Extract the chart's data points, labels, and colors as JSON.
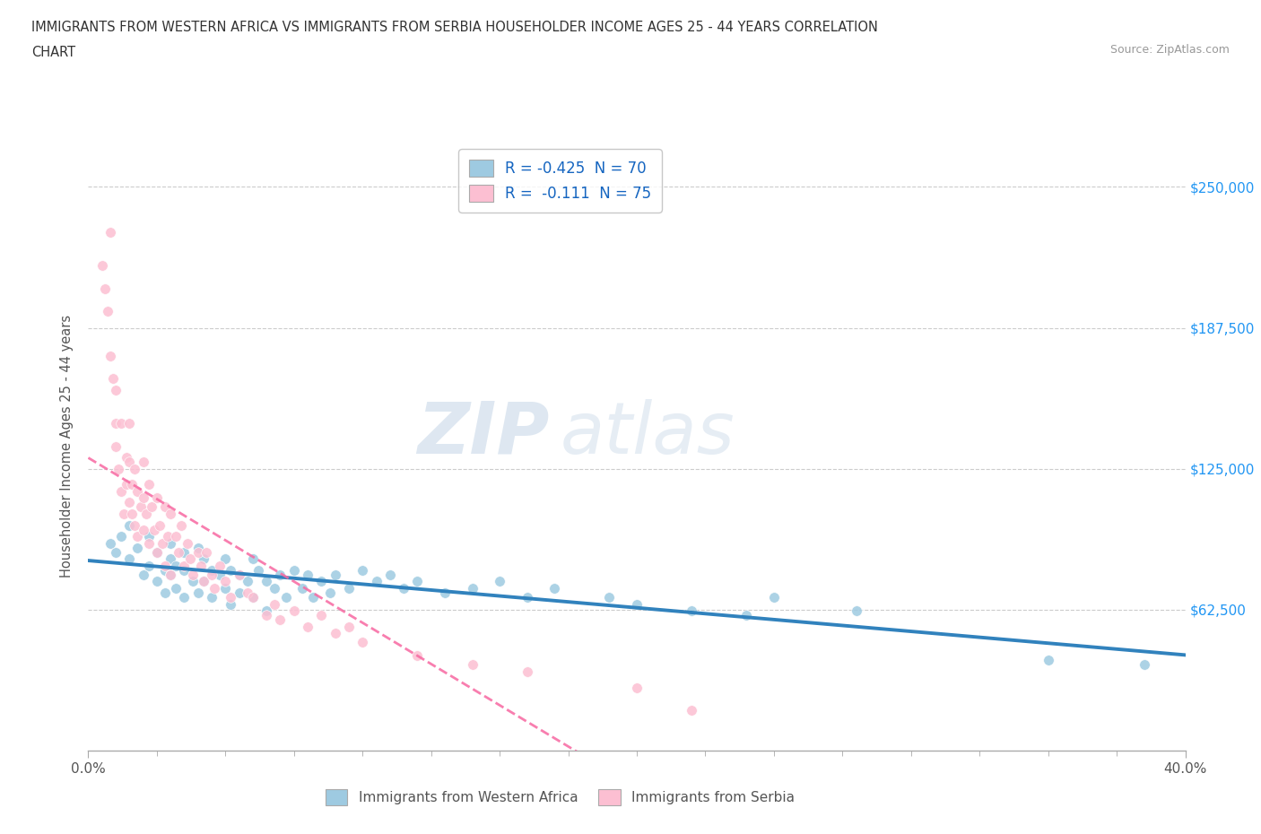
{
  "title_line1": "IMMIGRANTS FROM WESTERN AFRICA VS IMMIGRANTS FROM SERBIA HOUSEHOLDER INCOME AGES 25 - 44 YEARS CORRELATION",
  "title_line2": "CHART",
  "source_text": "Source: ZipAtlas.com",
  "ylabel": "Householder Income Ages 25 - 44 years",
  "xlim": [
    0.0,
    0.4
  ],
  "ylim": [
    0,
    270000
  ],
  "xtick_major_labels": [
    "0.0%",
    "40.0%"
  ],
  "xtick_major_values": [
    0.0,
    0.4
  ],
  "xtick_minor_values": [
    0.025,
    0.05,
    0.075,
    0.1,
    0.125,
    0.15,
    0.175,
    0.2,
    0.225,
    0.25,
    0.275,
    0.3,
    0.325,
    0.35,
    0.375
  ],
  "ytick_labels": [
    "$62,500",
    "$125,000",
    "$187,500",
    "$250,000"
  ],
  "ytick_values": [
    62500,
    125000,
    187500,
    250000
  ],
  "color_western_africa": "#9ecae1",
  "color_serbia": "#fcbfd2",
  "color_western_africa_line": "#3182bd",
  "color_serbia_line": "#f768a1",
  "watermark_zip": "ZIP",
  "watermark_atlas": "atlas",
  "legend_line1": "R = -0.425  N = 70",
  "legend_line2": "R =  -0.111  N = 75",
  "legend_label1": "Immigrants from Western Africa",
  "legend_label2": "Immigrants from Serbia",
  "western_africa_x": [
    0.008,
    0.01,
    0.012,
    0.015,
    0.015,
    0.018,
    0.02,
    0.022,
    0.022,
    0.025,
    0.025,
    0.028,
    0.028,
    0.03,
    0.03,
    0.03,
    0.032,
    0.032,
    0.035,
    0.035,
    0.035,
    0.038,
    0.04,
    0.04,
    0.042,
    0.042,
    0.045,
    0.045,
    0.048,
    0.05,
    0.05,
    0.052,
    0.052,
    0.055,
    0.055,
    0.058,
    0.06,
    0.06,
    0.062,
    0.065,
    0.065,
    0.068,
    0.07,
    0.072,
    0.075,
    0.078,
    0.08,
    0.082,
    0.085,
    0.088,
    0.09,
    0.095,
    0.1,
    0.105,
    0.11,
    0.115,
    0.12,
    0.13,
    0.14,
    0.15,
    0.16,
    0.17,
    0.19,
    0.2,
    0.22,
    0.24,
    0.25,
    0.28,
    0.35,
    0.385
  ],
  "western_africa_y": [
    92000,
    88000,
    95000,
    85000,
    100000,
    90000,
    78000,
    95000,
    82000,
    88000,
    75000,
    80000,
    70000,
    92000,
    85000,
    78000,
    82000,
    72000,
    88000,
    80000,
    68000,
    75000,
    90000,
    70000,
    85000,
    75000,
    80000,
    68000,
    78000,
    85000,
    72000,
    80000,
    65000,
    78000,
    70000,
    75000,
    85000,
    68000,
    80000,
    75000,
    62000,
    72000,
    78000,
    68000,
    80000,
    72000,
    78000,
    68000,
    75000,
    70000,
    78000,
    72000,
    80000,
    75000,
    78000,
    72000,
    75000,
    70000,
    72000,
    75000,
    68000,
    72000,
    68000,
    65000,
    62000,
    60000,
    68000,
    62000,
    40000,
    38000
  ],
  "serbia_x": [
    0.005,
    0.006,
    0.007,
    0.008,
    0.008,
    0.009,
    0.01,
    0.01,
    0.01,
    0.011,
    0.012,
    0.012,
    0.013,
    0.014,
    0.014,
    0.015,
    0.015,
    0.015,
    0.016,
    0.016,
    0.017,
    0.017,
    0.018,
    0.018,
    0.019,
    0.02,
    0.02,
    0.02,
    0.021,
    0.022,
    0.022,
    0.023,
    0.024,
    0.025,
    0.025,
    0.026,
    0.027,
    0.028,
    0.028,
    0.029,
    0.03,
    0.03,
    0.032,
    0.033,
    0.034,
    0.035,
    0.036,
    0.037,
    0.038,
    0.04,
    0.041,
    0.042,
    0.043,
    0.045,
    0.046,
    0.048,
    0.05,
    0.052,
    0.055,
    0.058,
    0.06,
    0.065,
    0.068,
    0.07,
    0.075,
    0.08,
    0.085,
    0.09,
    0.095,
    0.1,
    0.12,
    0.14,
    0.16,
    0.2,
    0.22
  ],
  "serbia_y": [
    215000,
    205000,
    195000,
    230000,
    175000,
    165000,
    145000,
    160000,
    135000,
    125000,
    145000,
    115000,
    105000,
    130000,
    118000,
    145000,
    128000,
    110000,
    118000,
    105000,
    125000,
    100000,
    115000,
    95000,
    108000,
    128000,
    112000,
    98000,
    105000,
    118000,
    92000,
    108000,
    98000,
    112000,
    88000,
    100000,
    92000,
    108000,
    82000,
    95000,
    105000,
    78000,
    95000,
    88000,
    100000,
    82000,
    92000,
    85000,
    78000,
    88000,
    82000,
    75000,
    88000,
    78000,
    72000,
    82000,
    75000,
    68000,
    78000,
    70000,
    68000,
    60000,
    65000,
    58000,
    62000,
    55000,
    60000,
    52000,
    55000,
    48000,
    42000,
    38000,
    35000,
    28000,
    18000
  ]
}
